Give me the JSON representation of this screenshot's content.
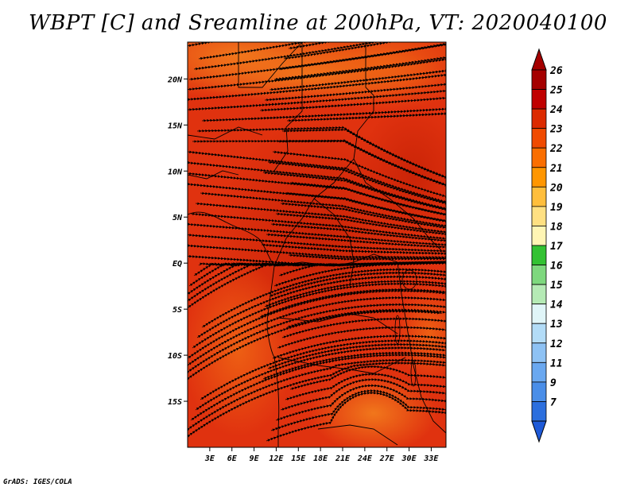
{
  "title": "WBPT [C] and Sreamline at 200hPa, VT: 2020040100",
  "credit": "GrADS: IGES/COLA",
  "map": {
    "lon_range": [
      0,
      35
    ],
    "lat_range": [
      -20,
      24
    ],
    "lat_ticks": [
      {
        "lat": 20,
        "label": "20N"
      },
      {
        "lat": 15,
        "label": "15N"
      },
      {
        "lat": 10,
        "label": "10N"
      },
      {
        "lat": 5,
        "label": "5N"
      },
      {
        "lat": 0,
        "label": "EQ"
      },
      {
        "lat": -5,
        "label": "5S"
      },
      {
        "lat": -10,
        "label": "10S"
      },
      {
        "lat": -15,
        "label": "15S"
      }
    ],
    "lon_ticks": [
      {
        "lon": 3,
        "label": "3E"
      },
      {
        "lon": 6,
        "label": "6E"
      },
      {
        "lon": 9,
        "label": "9E"
      },
      {
        "lon": 12,
        "label": "12E"
      },
      {
        "lon": 15,
        "label": "15E"
      },
      {
        "lon": 18,
        "label": "18E"
      },
      {
        "lon": 21,
        "label": "21E"
      },
      {
        "lon": 24,
        "label": "24E"
      },
      {
        "lon": 27,
        "label": "27E"
      },
      {
        "lon": 30,
        "label": "30E"
      },
      {
        "lon": 33,
        "label": "33E"
      }
    ],
    "field_colors": {
      "base": "#e0320f",
      "warm": "#cc2508",
      "cool": "#ee5b12",
      "coolest": "#f07818"
    }
  },
  "colorbar": {
    "levels": [
      {
        "label": "26",
        "color": "#a50000"
      },
      {
        "label": "25",
        "color": "#c00000"
      },
      {
        "label": "24",
        "color": "#dc2a00"
      },
      {
        "label": "23",
        "color": "#f04a00"
      },
      {
        "label": "22",
        "color": "#fa6e00"
      },
      {
        "label": "21",
        "color": "#ff9600"
      },
      {
        "label": "20",
        "color": "#ffbe3c"
      },
      {
        "label": "19",
        "color": "#ffe082"
      },
      {
        "label": "18",
        "color": "#fff5b4"
      },
      {
        "label": "17",
        "color": "#33c233"
      },
      {
        "label": "16",
        "color": "#7ed87e"
      },
      {
        "label": "15",
        "color": "#b5eab5"
      },
      {
        "label": "14",
        "color": "#e0f5f8"
      },
      {
        "label": "13",
        "color": "#b3dcf7"
      },
      {
        "label": "12",
        "color": "#8ec2f4"
      },
      {
        "label": "11",
        "color": "#6aa8f0"
      },
      {
        "label": "9",
        "color": "#4a8ee8"
      },
      {
        "label": "7",
        "color": "#2c6fde"
      }
    ],
    "bottom_color": "#1e5ad8"
  }
}
